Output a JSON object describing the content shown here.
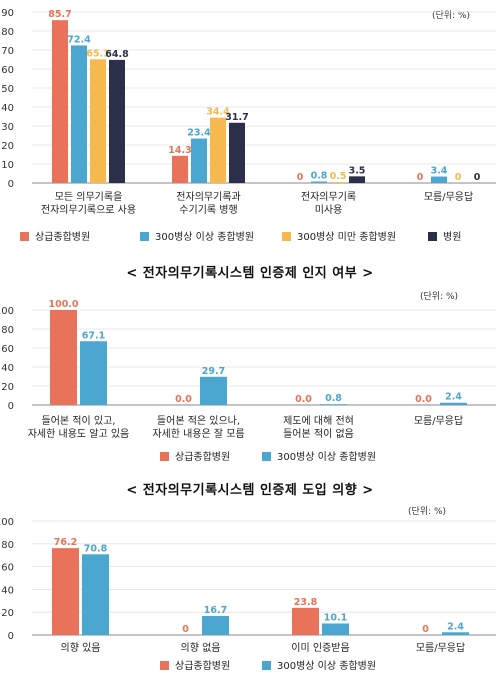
{
  "sections": [
    {
      "title": ""
    },
    {
      "title": "< 전자의무기록시스템 인증제 인지 여부 >"
    },
    {
      "title": "< 전자의무기록시스템 인증제 도입 의향 >"
    }
  ],
  "chart_data": [
    {
      "type": "bar",
      "unit_label": "(단위: %)",
      "ylim": [
        0,
        90
      ],
      "yticks": [
        0,
        10,
        20,
        30,
        40,
        50,
        60,
        70,
        80,
        90
      ],
      "grid": true,
      "legend_position": "bottom",
      "categories": [
        [
          "모든 의무기록을",
          "전자의무기록으로 사용"
        ],
        [
          "전자의무기록과",
          "수기기록 병행"
        ],
        [
          "전자의무기록",
          "미사용"
        ],
        [
          "모름/무응답"
        ]
      ],
      "series": [
        {
          "name": "상급종합병원",
          "color": "#E8735A",
          "values": [
            85.7,
            14.3,
            0,
            0
          ],
          "labels": [
            "85.7",
            "14.3",
            "0",
            "0"
          ]
        },
        {
          "name": "300병상 이상 종합병원",
          "color": "#4BA6D0",
          "values": [
            72.4,
            23.4,
            0.8,
            3.4
          ],
          "labels": [
            "72.4",
            "23.4",
            "0.8",
            "3.4"
          ]
        },
        {
          "name": "300병상 미만 종합병원",
          "color": "#F5B94F",
          "values": [
            65.1,
            34.4,
            0.5,
            0
          ],
          "labels": [
            "65.1",
            "34.4",
            "0.5",
            "0"
          ]
        },
        {
          "name": "병원",
          "color": "#2C2F4A",
          "values": [
            64.8,
            31.7,
            3.5,
            0
          ],
          "labels": [
            "64.8",
            "31.7",
            "3.5",
            "0"
          ]
        }
      ]
    },
    {
      "type": "bar",
      "unit_label": "(단위: %)",
      "ylim": [
        0,
        100
      ],
      "yticks": [
        0,
        20,
        40,
        60,
        80,
        100
      ],
      "grid": true,
      "legend_position": "bottom",
      "categories": [
        [
          "들어본 적이 있고,",
          "자세한 내용도 알고 있음"
        ],
        [
          "들어본 적은 있으나,",
          "자세한 내용은 잘 모름"
        ],
        [
          "제도에 대해 전혀",
          "들어본 적이 없음"
        ],
        [
          "모름/무응답"
        ]
      ],
      "series": [
        {
          "name": "상급종합병원",
          "color": "#E8735A",
          "values": [
            100.0,
            0.0,
            0.0,
            0.0
          ],
          "labels": [
            "100.0",
            "0.0",
            "0.0",
            "0.0"
          ]
        },
        {
          "name": "300병상 이상 종합병원",
          "color": "#4BA6D0",
          "values": [
            67.1,
            29.7,
            0.8,
            2.4
          ],
          "labels": [
            "67.1",
            "29.7",
            "0.8",
            "2.4"
          ]
        }
      ]
    },
    {
      "type": "bar",
      "unit_label": "(단위: %)",
      "ylim": [
        0,
        100
      ],
      "yticks": [
        0,
        20,
        40,
        60,
        80,
        100
      ],
      "grid": true,
      "legend_position": "bottom",
      "categories": [
        [
          "의향 있음"
        ],
        [
          "의향 없음"
        ],
        [
          "이미 인증받음"
        ],
        [
          "모름/무응답"
        ]
      ],
      "series": [
        {
          "name": "상급종합병원",
          "color": "#E8735A",
          "values": [
            76.2,
            0,
            23.8,
            0
          ],
          "labels": [
            "76.2",
            "0",
            "23.8",
            "0"
          ]
        },
        {
          "name": "300병상 이상 종합병원",
          "color": "#4BA6D0",
          "values": [
            70.8,
            16.7,
            10.1,
            2.4
          ],
          "labels": [
            "70.8",
            "16.7",
            "10.1",
            "2.4"
          ]
        }
      ]
    }
  ]
}
